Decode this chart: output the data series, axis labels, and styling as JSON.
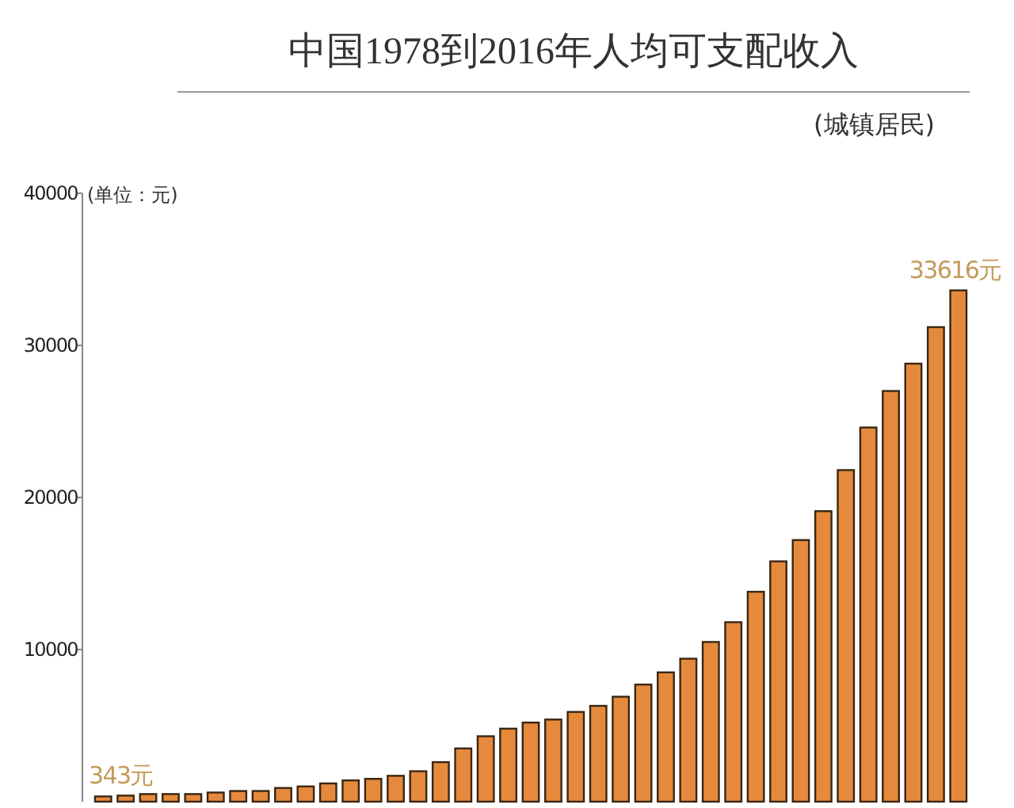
{
  "chart_data": {
    "type": "bar",
    "title": "中国1978到2016年人均可支配收入",
    "subtitle": "(城镇居民)",
    "ylabel": "(单位：元)",
    "categories": [
      null,
      null,
      null,
      null,
      null,
      null,
      null,
      null,
      null,
      null,
      null,
      null,
      null,
      null,
      null,
      null,
      null,
      null,
      null,
      null,
      null,
      null,
      null,
      null,
      null,
      null,
      null,
      null,
      null,
      null,
      null,
      null,
      null,
      null,
      null,
      null,
      null,
      null,
      null
    ],
    "values": [
      343,
      400,
      500,
      500,
      500,
      600,
      700,
      700,
      900,
      1000,
      1200,
      1400,
      1500,
      1700,
      2000,
      2600,
      3500,
      4300,
      4800,
      5200,
      5400,
      5900,
      6300,
      6900,
      7700,
      8500,
      9400,
      10500,
      11800,
      13800,
      15800,
      17200,
      19100,
      21800,
      24600,
      27000,
      28800,
      31200,
      33616
    ],
    "color": "#e58a3c",
    "value_labels": [
      "343元",
      null,
      null,
      null,
      null,
      null,
      null,
      null,
      null,
      null,
      null,
      null,
      null,
      null,
      null,
      null,
      null,
      null,
      null,
      null,
      null,
      null,
      null,
      null,
      null,
      null,
      null,
      null,
      null,
      null,
      null,
      null,
      null,
      null,
      null,
      null,
      null,
      null,
      "33616元"
    ],
    "ylim": [
      0,
      40000
    ],
    "yticks": [
      10000,
      20000,
      30000,
      40000
    ],
    "grid": false
  }
}
